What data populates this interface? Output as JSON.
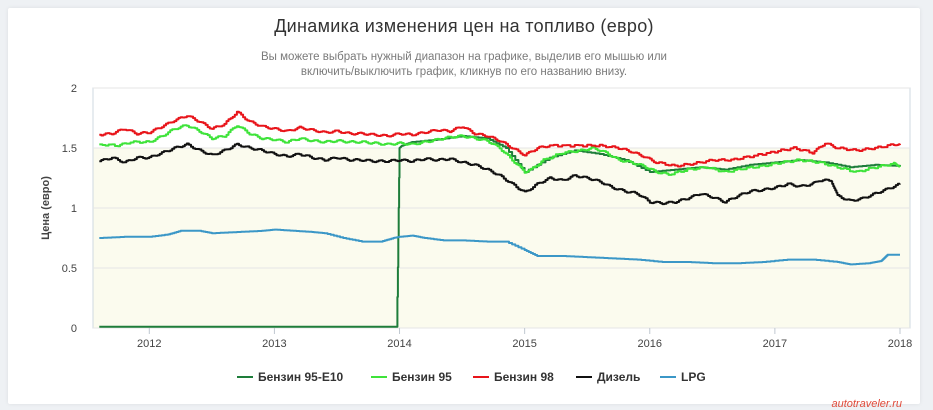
{
  "header": {
    "title": "Динамика изменения цен на топливо (евро)",
    "subtitle_line1": "Вы можете выбрать нужный диапазон на графике, выделив его мышью или",
    "subtitle_line2": "включить/выключить график, кликнув по его названию внизу."
  },
  "watermark": "autotraveler.ru",
  "chart_data": {
    "type": "line",
    "title": "Динамика изменения цен на топливо (евро)",
    "xlabel": "",
    "ylabel": "Цена (евро)",
    "xlim": [
      2011.55,
      2018.08
    ],
    "ylim": [
      0,
      2
    ],
    "yticks": [
      0,
      0.5,
      1,
      1.5,
      2
    ],
    "ytick_labels": [
      "0",
      "0.5",
      "1",
      "1.5",
      "2"
    ],
    "xticks": [
      2012,
      2013,
      2014,
      2015,
      2016,
      2017,
      2018
    ],
    "xtick_labels": [
      "2012",
      "2013",
      "2014",
      "2015",
      "2016",
      "2017",
      "2018"
    ],
    "grid": true,
    "legend_position": "bottom",
    "series": [
      {
        "name": "Бензин 95-E10",
        "color": "#1e7d3a",
        "points": [
          [
            2011.6,
            0.01
          ],
          [
            2012.5,
            0.01
          ],
          [
            2013.0,
            0.01
          ],
          [
            2013.5,
            0.01
          ],
          [
            2013.98,
            0.01
          ],
          [
            2014.0,
            1.5
          ],
          [
            2014.02,
            1.52
          ],
          [
            2014.1,
            1.55
          ],
          [
            2014.3,
            1.57
          ],
          [
            2014.5,
            1.6
          ],
          [
            2014.7,
            1.58
          ],
          [
            2014.85,
            1.5
          ],
          [
            2015.0,
            1.3
          ],
          [
            2015.2,
            1.42
          ],
          [
            2015.4,
            1.48
          ],
          [
            2015.6,
            1.45
          ],
          [
            2015.8,
            1.4
          ],
          [
            2016.0,
            1.3
          ],
          [
            2016.2,
            1.32
          ],
          [
            2016.4,
            1.34
          ],
          [
            2016.6,
            1.32
          ],
          [
            2016.8,
            1.36
          ],
          [
            2017.0,
            1.38
          ],
          [
            2017.2,
            1.4
          ],
          [
            2017.4,
            1.38
          ],
          [
            2017.6,
            1.34
          ],
          [
            2017.8,
            1.36
          ],
          [
            2018.0,
            1.35
          ]
        ]
      },
      {
        "name": "Бензин 95",
        "color": "#3ee33a",
        "points": [
          [
            2011.6,
            1.53
          ],
          [
            2011.75,
            1.52
          ],
          [
            2011.85,
            1.55
          ],
          [
            2012.0,
            1.55
          ],
          [
            2012.1,
            1.6
          ],
          [
            2012.2,
            1.66
          ],
          [
            2012.3,
            1.69
          ],
          [
            2012.4,
            1.64
          ],
          [
            2012.5,
            1.58
          ],
          [
            2012.6,
            1.6
          ],
          [
            2012.7,
            1.69
          ],
          [
            2012.8,
            1.62
          ],
          [
            2012.9,
            1.58
          ],
          [
            2013.0,
            1.57
          ],
          [
            2013.1,
            1.55
          ],
          [
            2013.2,
            1.58
          ],
          [
            2013.3,
            1.56
          ],
          [
            2013.4,
            1.55
          ],
          [
            2013.5,
            1.56
          ],
          [
            2013.6,
            1.55
          ],
          [
            2013.7,
            1.55
          ],
          [
            2013.8,
            1.54
          ],
          [
            2013.9,
            1.53
          ],
          [
            2014.0,
            1.54
          ],
          [
            2014.1,
            1.53
          ],
          [
            2014.2,
            1.55
          ],
          [
            2014.3,
            1.57
          ],
          [
            2014.4,
            1.59
          ],
          [
            2014.5,
            1.6
          ],
          [
            2014.6,
            1.58
          ],
          [
            2014.7,
            1.56
          ],
          [
            2014.8,
            1.5
          ],
          [
            2014.9,
            1.4
          ],
          [
            2015.0,
            1.3
          ],
          [
            2015.05,
            1.32
          ],
          [
            2015.15,
            1.4
          ],
          [
            2015.3,
            1.46
          ],
          [
            2015.45,
            1.48
          ],
          [
            2015.55,
            1.5
          ],
          [
            2015.65,
            1.46
          ],
          [
            2015.75,
            1.4
          ],
          [
            2015.85,
            1.38
          ],
          [
            2015.95,
            1.35
          ],
          [
            2016.05,
            1.3
          ],
          [
            2016.15,
            1.28
          ],
          [
            2016.3,
            1.32
          ],
          [
            2016.45,
            1.34
          ],
          [
            2016.6,
            1.3
          ],
          [
            2016.75,
            1.33
          ],
          [
            2016.9,
            1.35
          ],
          [
            2017.05,
            1.38
          ],
          [
            2017.2,
            1.4
          ],
          [
            2017.35,
            1.38
          ],
          [
            2017.5,
            1.34
          ],
          [
            2017.65,
            1.3
          ],
          [
            2017.8,
            1.34
          ],
          [
            2017.95,
            1.37
          ],
          [
            2018.0,
            1.35
          ]
        ]
      },
      {
        "name": "Бензин 98",
        "color": "#e8141a",
        "points": [
          [
            2011.6,
            1.61
          ],
          [
            2011.7,
            1.62
          ],
          [
            2011.8,
            1.66
          ],
          [
            2011.9,
            1.62
          ],
          [
            2012.0,
            1.63
          ],
          [
            2012.1,
            1.68
          ],
          [
            2012.2,
            1.73
          ],
          [
            2012.3,
            1.77
          ],
          [
            2012.4,
            1.72
          ],
          [
            2012.5,
            1.66
          ],
          [
            2012.6,
            1.7
          ],
          [
            2012.7,
            1.8
          ],
          [
            2012.8,
            1.72
          ],
          [
            2012.9,
            1.68
          ],
          [
            2013.0,
            1.66
          ],
          [
            2013.1,
            1.64
          ],
          [
            2013.2,
            1.67
          ],
          [
            2013.3,
            1.65
          ],
          [
            2013.4,
            1.63
          ],
          [
            2013.5,
            1.64
          ],
          [
            2013.6,
            1.62
          ],
          [
            2013.7,
            1.62
          ],
          [
            2013.8,
            1.61
          ],
          [
            2013.9,
            1.6
          ],
          [
            2014.0,
            1.62
          ],
          [
            2014.1,
            1.61
          ],
          [
            2014.2,
            1.63
          ],
          [
            2014.3,
            1.65
          ],
          [
            2014.4,
            1.64
          ],
          [
            2014.5,
            1.68
          ],
          [
            2014.6,
            1.62
          ],
          [
            2014.7,
            1.6
          ],
          [
            2014.8,
            1.56
          ],
          [
            2014.9,
            1.5
          ],
          [
            2015.0,
            1.44
          ],
          [
            2015.1,
            1.5
          ],
          [
            2015.2,
            1.52
          ],
          [
            2015.4,
            1.52
          ],
          [
            2015.6,
            1.52
          ],
          [
            2015.75,
            1.5
          ],
          [
            2015.85,
            1.47
          ],
          [
            2015.95,
            1.43
          ],
          [
            2016.05,
            1.38
          ],
          [
            2016.2,
            1.35
          ],
          [
            2016.35,
            1.37
          ],
          [
            2016.5,
            1.4
          ],
          [
            2016.65,
            1.4
          ],
          [
            2016.8,
            1.43
          ],
          [
            2017.0,
            1.47
          ],
          [
            2017.15,
            1.5
          ],
          [
            2017.3,
            1.46
          ],
          [
            2017.4,
            1.54
          ],
          [
            2017.5,
            1.5
          ],
          [
            2017.65,
            1.48
          ],
          [
            2017.8,
            1.5
          ],
          [
            2017.95,
            1.53
          ],
          [
            2018.0,
            1.53
          ]
        ]
      },
      {
        "name": "Дизель",
        "color": "#111111",
        "points": [
          [
            2011.6,
            1.39
          ],
          [
            2011.7,
            1.42
          ],
          [
            2011.8,
            1.38
          ],
          [
            2011.9,
            1.42
          ],
          [
            2012.0,
            1.42
          ],
          [
            2012.1,
            1.46
          ],
          [
            2012.2,
            1.5
          ],
          [
            2012.3,
            1.53
          ],
          [
            2012.4,
            1.48
          ],
          [
            2012.5,
            1.44
          ],
          [
            2012.6,
            1.48
          ],
          [
            2012.7,
            1.53
          ],
          [
            2012.8,
            1.5
          ],
          [
            2012.9,
            1.48
          ],
          [
            2013.0,
            1.45
          ],
          [
            2013.1,
            1.43
          ],
          [
            2013.2,
            1.45
          ],
          [
            2013.3,
            1.42
          ],
          [
            2013.4,
            1.4
          ],
          [
            2013.5,
            1.42
          ],
          [
            2013.6,
            1.4
          ],
          [
            2013.7,
            1.4
          ],
          [
            2013.8,
            1.39
          ],
          [
            2013.9,
            1.39
          ],
          [
            2014.0,
            1.4
          ],
          [
            2014.1,
            1.39
          ],
          [
            2014.2,
            1.41
          ],
          [
            2014.3,
            1.4
          ],
          [
            2014.4,
            1.41
          ],
          [
            2014.5,
            1.38
          ],
          [
            2014.6,
            1.36
          ],
          [
            2014.7,
            1.32
          ],
          [
            2014.8,
            1.27
          ],
          [
            2014.9,
            1.2
          ],
          [
            2015.0,
            1.13
          ],
          [
            2015.1,
            1.2
          ],
          [
            2015.2,
            1.25
          ],
          [
            2015.3,
            1.23
          ],
          [
            2015.4,
            1.27
          ],
          [
            2015.5,
            1.25
          ],
          [
            2015.6,
            1.22
          ],
          [
            2015.7,
            1.17
          ],
          [
            2015.8,
            1.14
          ],
          [
            2015.9,
            1.12
          ],
          [
            2016.0,
            1.05
          ],
          [
            2016.1,
            1.04
          ],
          [
            2016.2,
            1.05
          ],
          [
            2016.3,
            1.08
          ],
          [
            2016.4,
            1.12
          ],
          [
            2016.5,
            1.09
          ],
          [
            2016.6,
            1.05
          ],
          [
            2016.7,
            1.1
          ],
          [
            2016.8,
            1.14
          ],
          [
            2016.9,
            1.15
          ],
          [
            2017.0,
            1.17
          ],
          [
            2017.1,
            1.2
          ],
          [
            2017.2,
            1.18
          ],
          [
            2017.3,
            1.2
          ],
          [
            2017.35,
            1.23
          ],
          [
            2017.45,
            1.23
          ],
          [
            2017.5,
            1.1
          ],
          [
            2017.6,
            1.06
          ],
          [
            2017.7,
            1.08
          ],
          [
            2017.8,
            1.12
          ],
          [
            2017.9,
            1.16
          ],
          [
            2018.0,
            1.2
          ]
        ]
      },
      {
        "name": "LPG",
        "color": "#3b97c7",
        "points": [
          [
            2011.6,
            0.75
          ],
          [
            2011.8,
            0.76
          ],
          [
            2012.0,
            0.76
          ],
          [
            2012.15,
            0.78
          ],
          [
            2012.25,
            0.81
          ],
          [
            2012.4,
            0.81
          ],
          [
            2012.5,
            0.79
          ],
          [
            2012.7,
            0.8
          ],
          [
            2012.9,
            0.81
          ],
          [
            2013.0,
            0.82
          ],
          [
            2013.15,
            0.81
          ],
          [
            2013.3,
            0.8
          ],
          [
            2013.4,
            0.79
          ],
          [
            2013.55,
            0.75
          ],
          [
            2013.7,
            0.72
          ],
          [
            2013.85,
            0.72
          ],
          [
            2013.95,
            0.75
          ],
          [
            2014.0,
            0.76
          ],
          [
            2014.1,
            0.77
          ],
          [
            2014.2,
            0.75
          ],
          [
            2014.35,
            0.73
          ],
          [
            2014.5,
            0.73
          ],
          [
            2014.7,
            0.72
          ],
          [
            2014.85,
            0.72
          ],
          [
            2015.0,
            0.65
          ],
          [
            2015.1,
            0.6
          ],
          [
            2015.3,
            0.6
          ],
          [
            2015.5,
            0.59
          ],
          [
            2015.7,
            0.58
          ],
          [
            2015.9,
            0.57
          ],
          [
            2016.1,
            0.55
          ],
          [
            2016.3,
            0.55
          ],
          [
            2016.5,
            0.54
          ],
          [
            2016.7,
            0.54
          ],
          [
            2016.9,
            0.55
          ],
          [
            2017.1,
            0.57
          ],
          [
            2017.3,
            0.57
          ],
          [
            2017.5,
            0.55
          ],
          [
            2017.6,
            0.53
          ],
          [
            2017.75,
            0.54
          ],
          [
            2017.85,
            0.56
          ],
          [
            2017.9,
            0.61
          ],
          [
            2018.0,
            0.61
          ]
        ]
      }
    ]
  }
}
